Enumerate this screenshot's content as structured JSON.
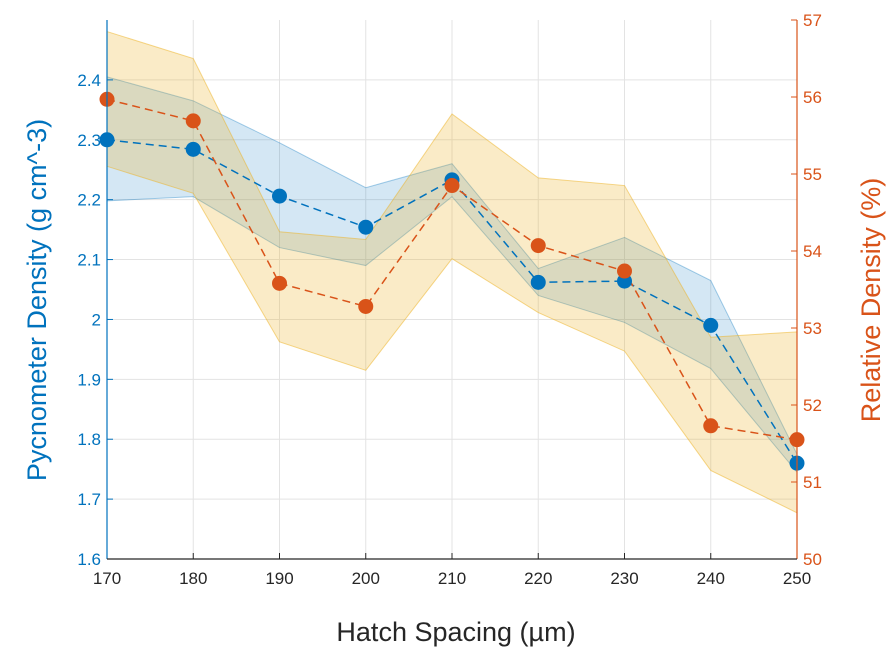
{
  "chart_data": {
    "type": "line",
    "xlabel": "Hatch Spacing (µm)",
    "ylabel_left": "Pycnometer Density (g cm^-3)",
    "ylabel_right": "Relative Density (%)",
    "x_ticks": [
      "170",
      "180",
      "190",
      "200",
      "210",
      "220",
      "230",
      "240",
      "250"
    ],
    "y_left_ticks": [
      "1.6",
      "1.7",
      "1.8",
      "1.9",
      "2",
      "2.1",
      "2.2",
      "2.3",
      "2.4"
    ],
    "y_right_ticks": [
      "50",
      "51",
      "52",
      "53",
      "54",
      "55",
      "56",
      "57"
    ],
    "xlim": [
      170,
      250
    ],
    "ylim_left": [
      1.6,
      2.5
    ],
    "ylim_right": [
      50,
      57
    ],
    "grid": true,
    "x": [
      170,
      180,
      190,
      200,
      210,
      220,
      230,
      240,
      250
    ],
    "series": [
      {
        "axis": "left",
        "color": "#0072BD",
        "values": [
          2.3,
          2.284,
          2.206,
          2.154,
          2.233,
          2.062,
          2.064,
          1.99,
          1.76
        ],
        "upper": [
          2.405,
          2.365,
          2.295,
          2.22,
          2.26,
          2.085,
          2.137,
          2.065,
          1.775
        ],
        "lower": [
          2.198,
          2.205,
          2.12,
          2.09,
          2.205,
          2.04,
          1.995,
          1.918,
          1.745
        ]
      },
      {
        "axis": "right",
        "color": "#D95319",
        "values": [
          55.97,
          55.69,
          53.58,
          53.28,
          54.85,
          54.07,
          53.74,
          51.73,
          51.55
        ],
        "upper": [
          56.85,
          56.5,
          54.25,
          54.15,
          55.78,
          54.95,
          54.85,
          52.88,
          52.95
        ],
        "lower": [
          55.1,
          54.75,
          52.82,
          52.45,
          53.9,
          53.2,
          52.7,
          51.15,
          50.6
        ]
      }
    ]
  }
}
